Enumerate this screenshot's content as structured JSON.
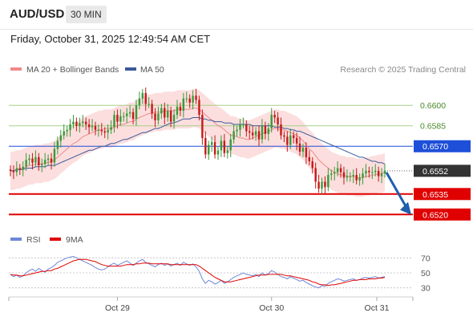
{
  "header": {
    "symbol": "AUD/USD",
    "timeframe": "30 MIN",
    "datetime": "Friday, October 31, 2025 12:49:54 AM CET"
  },
  "legend": {
    "ma20": "MA 20 + Bollinger Bands",
    "ma50": "MA 50",
    "rsi": "RSI",
    "ma9": "9MA",
    "credit": "Research © 2025 Trading Central"
  },
  "colors": {
    "bull": "#3a9a3a",
    "bear": "#c61a1a",
    "bands": "#fbd8d8",
    "ma20": "#f08a8a",
    "ma50": "#3a5a9a",
    "resistance_green": "#a8d08a",
    "current_blue": "#1e4fd8",
    "support_red": "#e00000",
    "price_box": "#333333",
    "rsi_line": "#6f86d6",
    "rsi_ma": "#e00000"
  },
  "chart_data": {
    "type": "candlestick",
    "price_range": [
      0.6509,
      0.6616
    ],
    "current_price": 0.6552,
    "levels": [
      {
        "label": "0.6600",
        "value": 0.66,
        "kind": "resistance"
      },
      {
        "label": "0.6585",
        "value": 0.6585,
        "kind": "resistance"
      },
      {
        "label": "0.6570",
        "value": 0.657,
        "kind": "pivot"
      },
      {
        "label": "0.6535",
        "value": 0.6535,
        "kind": "support"
      },
      {
        "label": "0.6520",
        "value": 0.652,
        "kind": "support"
      }
    ],
    "x_ticks": [
      "Oct 29",
      "Oct 30",
      "Oct 31"
    ],
    "rsi_ticks": [
      70,
      50,
      30
    ],
    "rsi_range": [
      20,
      80
    ],
    "forecast": {
      "from": 0.6552,
      "to": 0.6521
    },
    "candles_close": [
      0.6552,
      0.6551,
      0.6554,
      0.6553,
      0.6555,
      0.656,
      0.6561,
      0.6558,
      0.6562,
      0.6556,
      0.6557,
      0.656,
      0.6561,
      0.6558,
      0.6568,
      0.6574,
      0.6578,
      0.6581,
      0.6582,
      0.6586,
      0.6588,
      0.6585,
      0.6587,
      0.6588,
      0.6586,
      0.6584,
      0.6585,
      0.6582,
      0.6582,
      0.6581,
      0.658,
      0.6582,
      0.6584,
      0.6593,
      0.6588,
      0.6592,
      0.6592,
      0.6594,
      0.6595,
      0.659,
      0.66,
      0.6605,
      0.6609,
      0.6601,
      0.6601,
      0.6594,
      0.6589,
      0.6594,
      0.6598,
      0.6591,
      0.6596,
      0.6588,
      0.6593,
      0.6599,
      0.6596,
      0.6605,
      0.6605,
      0.6602,
      0.6607,
      0.6604,
      0.6593,
      0.6576,
      0.6564,
      0.6571,
      0.6573,
      0.6564,
      0.6567,
      0.6574,
      0.6565,
      0.6567,
      0.6575,
      0.6581,
      0.6582,
      0.6586,
      0.6586,
      0.6581,
      0.658,
      0.6578,
      0.6581,
      0.6575,
      0.6585,
      0.6579,
      0.6583,
      0.6593,
      0.6591,
      0.6586,
      0.6578,
      0.6577,
      0.6571,
      0.6578,
      0.6576,
      0.6572,
      0.6566,
      0.6569,
      0.6562,
      0.6559,
      0.6554,
      0.6544,
      0.6539,
      0.6544,
      0.654,
      0.6549,
      0.655,
      0.6551,
      0.6554,
      0.6551,
      0.6547,
      0.6548,
      0.6548,
      0.6549,
      0.6545,
      0.6547,
      0.655,
      0.6552,
      0.6551,
      0.6551,
      0.6552,
      0.6548,
      0.655,
      0.6552
    ],
    "candles_open": [
      0.6553,
      0.6552,
      0.6551,
      0.6554,
      0.6553,
      0.6555,
      0.656,
      0.6561,
      0.6558,
      0.6562,
      0.6556,
      0.6557,
      0.656,
      0.6561,
      0.6558,
      0.6568,
      0.6574,
      0.6578,
      0.6581,
      0.6582,
      0.6586,
      0.6588,
      0.6585,
      0.6587,
      0.6588,
      0.6586,
      0.6584,
      0.6585,
      0.6582,
      0.6582,
      0.6581,
      0.658,
      0.6582,
      0.6584,
      0.6593,
      0.6588,
      0.6592,
      0.6592,
      0.6594,
      0.6595,
      0.659,
      0.66,
      0.6605,
      0.6609,
      0.6601,
      0.6601,
      0.6594,
      0.6589,
      0.6594,
      0.6598,
      0.6591,
      0.6596,
      0.6588,
      0.6593,
      0.6599,
      0.6596,
      0.6605,
      0.6605,
      0.6602,
      0.6607,
      0.6604,
      0.6593,
      0.6576,
      0.6564,
      0.6571,
      0.6573,
      0.6564,
      0.6567,
      0.6574,
      0.6565,
      0.6567,
      0.6575,
      0.6581,
      0.6582,
      0.6586,
      0.6586,
      0.6581,
      0.658,
      0.6578,
      0.6581,
      0.6575,
      0.6585,
      0.6579,
      0.6583,
      0.6593,
      0.6591,
      0.6586,
      0.6578,
      0.6577,
      0.6571,
      0.6578,
      0.6576,
      0.6572,
      0.6566,
      0.6569,
      0.6562,
      0.6559,
      0.6554,
      0.6544,
      0.6539,
      0.6544,
      0.654,
      0.6549,
      0.655,
      0.6551,
      0.6554,
      0.6551,
      0.6547,
      0.6548,
      0.6548,
      0.6549,
      0.6545,
      0.6547,
      0.655,
      0.6552,
      0.6551,
      0.6551,
      0.6552,
      0.6548,
      0.655
    ],
    "ma20": [
      0.6552,
      0.6552,
      0.6553,
      0.6553,
      0.6554,
      0.6555,
      0.6556,
      0.6556,
      0.6557,
      0.6557,
      0.6557,
      0.6558,
      0.6558,
      0.6559,
      0.656,
      0.6562,
      0.6564,
      0.6566,
      0.6568,
      0.657,
      0.6572,
      0.6573,
      0.6575,
      0.6577,
      0.6578,
      0.6579,
      0.658,
      0.6581,
      0.6582,
      0.6582,
      0.6583,
      0.6583,
      0.6583,
      0.6584,
      0.6585,
      0.6586,
      0.6586,
      0.6587,
      0.6588,
      0.6588,
      0.659,
      0.6591,
      0.6592,
      0.6593,
      0.6594,
      0.6594,
      0.6595,
      0.6595,
      0.6595,
      0.6596,
      0.6596,
      0.6596,
      0.6596,
      0.6597,
      0.6597,
      0.6597,
      0.6597,
      0.6597,
      0.6598,
      0.6598,
      0.6597,
      0.6595,
      0.6593,
      0.6591,
      0.6589,
      0.6587,
      0.6585,
      0.6584,
      0.6582,
      0.658,
      0.6578,
      0.6578,
      0.6577,
      0.6576,
      0.6576,
      0.6575,
      0.6575,
      0.6576,
      0.6577,
      0.6578,
      0.6579,
      0.658,
      0.6581,
      0.6582,
      0.6583,
      0.6583,
      0.6582,
      0.6582,
      0.6581,
      0.658,
      0.6579,
      0.6578,
      0.6576,
      0.6574,
      0.6571,
      0.6568,
      0.6566,
      0.6563,
      0.656,
      0.6558,
      0.6556,
      0.6554,
      0.6552,
      0.6551,
      0.655,
      0.6549,
      0.6549,
      0.6548,
      0.6548,
      0.6548,
      0.6547,
      0.6547,
      0.6547,
      0.6548,
      0.6548,
      0.6549,
      0.6549,
      0.655,
      0.655,
      0.6551
    ],
    "ma50": [
      0.6552,
      0.6552,
      0.6553,
      0.6553,
      0.6553,
      0.6554,
      0.6554,
      0.6554,
      0.6555,
      0.6555,
      0.6555,
      0.6555,
      0.6556,
      0.6556,
      0.6556,
      0.6557,
      0.6558,
      0.6559,
      0.656,
      0.6561,
      0.6562,
      0.6563,
      0.6564,
      0.6565,
      0.6566,
      0.6567,
      0.6567,
      0.6568,
      0.6569,
      0.657,
      0.657,
      0.6571,
      0.6572,
      0.6572,
      0.6573,
      0.6574,
      0.6575,
      0.6575,
      0.6576,
      0.6577,
      0.6578,
      0.6579,
      0.658,
      0.658,
      0.6581,
      0.6582,
      0.6583,
      0.6583,
      0.6584,
      0.6585,
      0.6586,
      0.6587,
      0.6587,
      0.6588,
      0.6589,
      0.659,
      0.659,
      0.659,
      0.6591,
      0.6591,
      0.6591,
      0.659,
      0.659,
      0.6589,
      0.6589,
      0.6588,
      0.6588,
      0.6588,
      0.6587,
      0.6587,
      0.6587,
      0.6586,
      0.6586,
      0.6586,
      0.6586,
      0.6586,
      0.6586,
      0.6585,
      0.6585,
      0.6585,
      0.6585,
      0.6585,
      0.6585,
      0.6585,
      0.6584,
      0.6584,
      0.6584,
      0.6583,
      0.6583,
      0.6582,
      0.6582,
      0.6581,
      0.6581,
      0.658,
      0.6579,
      0.6578,
      0.6577,
      0.6576,
      0.6575,
      0.6574,
      0.6573,
      0.6572,
      0.6571,
      0.657,
      0.6569,
      0.6568,
      0.6567,
      0.6566,
      0.6565,
      0.6564,
      0.6563,
      0.6562,
      0.6562,
      0.6561,
      0.656,
      0.6559,
      0.6559,
      0.6558,
      0.6558,
      0.6557
    ],
    "bb_width": 0.0014,
    "rsi": [
      48,
      45,
      47,
      44,
      46,
      50,
      53,
      55,
      52,
      56,
      53,
      51,
      55,
      57,
      60,
      64,
      66,
      68,
      70,
      71,
      72,
      70,
      68,
      66,
      64,
      62,
      60,
      57,
      55,
      54,
      55,
      58,
      61,
      63,
      60,
      62,
      64,
      66,
      63,
      60,
      63,
      66,
      68,
      64,
      62,
      60,
      58,
      61,
      63,
      60,
      62,
      59,
      61,
      63,
      60,
      64,
      62,
      60,
      62,
      58,
      52,
      42,
      36,
      40,
      38,
      35,
      37,
      40,
      36,
      38,
      41,
      44,
      46,
      48,
      50,
      48,
      47,
      46,
      48,
      45,
      50,
      47,
      49,
      53,
      51,
      48,
      45,
      44,
      42,
      45,
      43,
      41,
      39,
      40,
      37,
      35,
      33,
      31,
      30,
      33,
      32,
      36,
      38,
      40,
      42,
      41,
      39,
      40,
      41,
      42,
      40,
      41,
      43,
      44,
      43,
      44,
      45,
      43,
      44,
      45
    ],
    "rsi_ma": [
      48,
      47,
      47,
      46,
      46,
      47,
      48,
      49,
      50,
      51,
      52,
      52,
      53,
      53,
      55,
      56,
      58,
      60,
      62,
      64,
      66,
      67,
      68,
      68,
      68,
      67,
      66,
      65,
      63,
      61,
      60,
      59,
      59,
      59,
      59,
      59,
      60,
      61,
      61,
      61,
      62,
      62,
      63,
      63,
      63,
      62,
      62,
      62,
      62,
      62,
      62,
      61,
      61,
      61,
      61,
      61,
      61,
      61,
      61,
      61,
      59,
      56,
      53,
      50,
      47,
      44,
      42,
      40,
      38,
      38,
      38,
      39,
      40,
      41,
      42,
      43,
      44,
      45,
      46,
      47,
      47,
      47,
      48,
      48,
      48,
      48,
      48,
      47,
      46,
      46,
      45,
      44,
      43,
      42,
      41,
      40,
      38,
      37,
      35,
      34,
      34,
      33,
      34,
      34,
      35,
      36,
      37,
      38,
      39,
      40,
      40,
      41,
      41,
      41,
      42,
      42,
      42,
      43,
      43,
      44
    ]
  }
}
